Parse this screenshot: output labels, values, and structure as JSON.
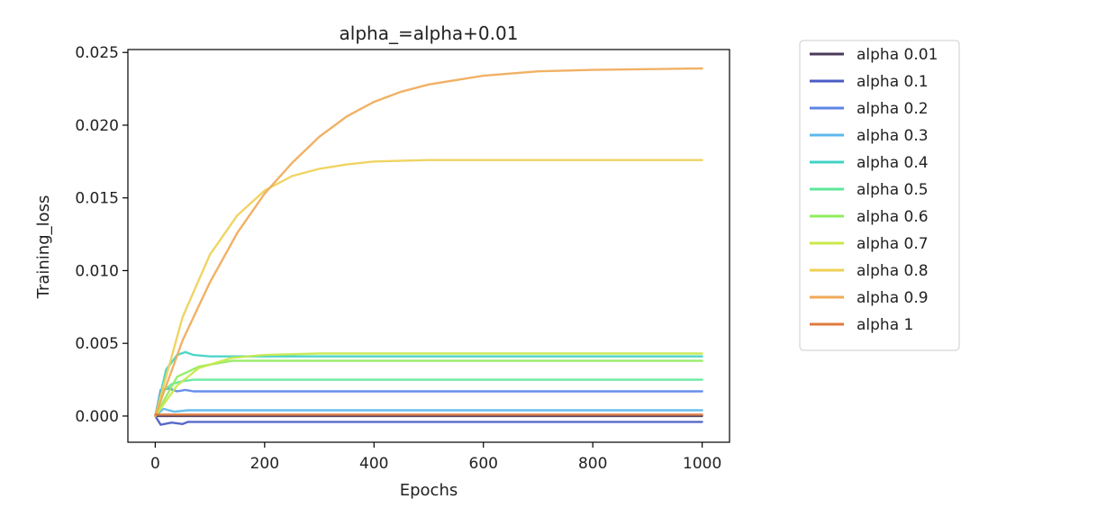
{
  "chart_data": {
    "type": "line",
    "title": "alpha_=alpha+0.01",
    "xlabel": "Epochs",
    "ylabel": "Training_loss",
    "xlim": [
      -50,
      1050
    ],
    "ylim": [
      -0.0018,
      0.0252
    ],
    "xticks": [
      0,
      200,
      400,
      600,
      800,
      1000
    ],
    "xtick_labels": [
      "0",
      "200",
      "400",
      "600",
      "800",
      "1000"
    ],
    "yticks": [
      0.0,
      0.005,
      0.01,
      0.015,
      0.02,
      0.025
    ],
    "ytick_labels": [
      "0.000",
      "0.005",
      "0.010",
      "0.015",
      "0.020",
      "0.025"
    ],
    "grid": false,
    "legend_position": "outside-right",
    "series": [
      {
        "name": "alpha 0.01",
        "color": "#4b3a5a",
        "x": [
          0,
          20,
          1000
        ],
        "y": [
          0.0,
          0.0,
          0.0
        ]
      },
      {
        "name": "alpha 0.1",
        "color": "#4a5bc4",
        "x": [
          0,
          10,
          30,
          50,
          60,
          1000
        ],
        "y": [
          0.0,
          -0.0006,
          -0.00045,
          -0.00055,
          -0.0004,
          -0.0004
        ]
      },
      {
        "name": "alpha 0.2",
        "color": "#5b86e6",
        "x": [
          0,
          10,
          25,
          40,
          55,
          70,
          1000
        ],
        "y": [
          0.0,
          0.0018,
          0.0019,
          0.0017,
          0.0018,
          0.0017,
          0.0017
        ]
      },
      {
        "name": "alpha 0.3",
        "color": "#5cb8ec",
        "x": [
          0,
          15,
          35,
          60,
          1000
        ],
        "y": [
          0.0,
          0.0005,
          0.0003,
          0.0004,
          0.0004
        ]
      },
      {
        "name": "alpha 0.4",
        "color": "#3fd3c4",
        "x": [
          0,
          20,
          40,
          55,
          70,
          100,
          1000
        ],
        "y": [
          0.0,
          0.0032,
          0.0042,
          0.0044,
          0.0042,
          0.0041,
          0.0041
        ]
      },
      {
        "name": "alpha 0.5",
        "color": "#5de89a",
        "x": [
          0,
          15,
          30,
          50,
          70,
          1000
        ],
        "y": [
          0.0,
          0.0017,
          0.0022,
          0.0024,
          0.0025,
          0.0025
        ]
      },
      {
        "name": "alpha 0.6",
        "color": "#8fec5c",
        "x": [
          0,
          40,
          80,
          140,
          250,
          1000
        ],
        "y": [
          0.0,
          0.0027,
          0.0034,
          0.0038,
          0.0038,
          0.0038
        ]
      },
      {
        "name": "alpha 0.7",
        "color": "#c8e84a",
        "x": [
          0,
          40,
          80,
          140,
          200,
          300,
          1000
        ],
        "y": [
          0.0,
          0.0021,
          0.0033,
          0.004,
          0.0042,
          0.0043,
          0.0043
        ]
      },
      {
        "name": "alpha 0.8",
        "color": "#efd056",
        "x": [
          0,
          50,
          100,
          150,
          200,
          250,
          300,
          350,
          400,
          500,
          600,
          1000
        ],
        "y": [
          0.0,
          0.0068,
          0.0111,
          0.0138,
          0.0155,
          0.0165,
          0.017,
          0.0173,
          0.0175,
          0.0176,
          0.0176,
          0.0176
        ]
      },
      {
        "name": "alpha 0.9",
        "color": "#f0aa58",
        "x": [
          0,
          50,
          100,
          150,
          200,
          250,
          300,
          350,
          400,
          450,
          500,
          600,
          700,
          800,
          1000
        ],
        "y": [
          0.0,
          0.0052,
          0.0092,
          0.0126,
          0.0153,
          0.0174,
          0.0192,
          0.0206,
          0.0216,
          0.0223,
          0.0228,
          0.0234,
          0.0237,
          0.0238,
          0.0239
        ]
      },
      {
        "name": "alpha 1",
        "color": "#e07a3c",
        "x": [
          0,
          1000
        ],
        "y": [
          0.0001,
          0.0001
        ]
      }
    ]
  }
}
